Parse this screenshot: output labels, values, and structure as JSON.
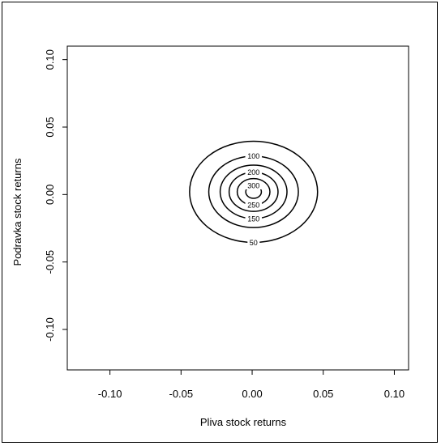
{
  "chart_data": {
    "type": "contour",
    "title": "",
    "xlabel": "Pliva stock returns",
    "ylabel": "Podravka stock returns",
    "xlim": [
      -0.13,
      0.11
    ],
    "ylim": [
      -0.13,
      0.11
    ],
    "x_ticks": [
      -0.1,
      -0.05,
      0.0,
      0.05,
      0.1
    ],
    "y_ticks": [
      -0.1,
      -0.05,
      0.0,
      0.05,
      0.1
    ],
    "x_tick_labels": [
      "-0.10",
      "-0.05",
      "0.00",
      "0.05",
      "0.10"
    ],
    "y_tick_labels": [
      "-0.10",
      "-0.05",
      "0.00",
      "0.05",
      "0.10"
    ],
    "center": [
      0.001,
      0.002
    ],
    "levels": [
      {
        "level": 50,
        "label": "50",
        "rx": 0.045,
        "ry": 0.0375
      },
      {
        "level": 100,
        "label": "100",
        "rx": 0.0315,
        "ry": 0.0265
      },
      {
        "level": 150,
        "label": "150",
        "rx": 0.0235,
        "ry": 0.0198
      },
      {
        "level": 200,
        "label": "200",
        "rx": 0.0172,
        "ry": 0.0145
      },
      {
        "level": 250,
        "label": "250",
        "rx": 0.0115,
        "ry": 0.0098
      },
      {
        "level": 300,
        "label": "300",
        "rx": 0.0055,
        "ry": 0.0048
      }
    ],
    "grid": false,
    "line_color": "#000000"
  }
}
